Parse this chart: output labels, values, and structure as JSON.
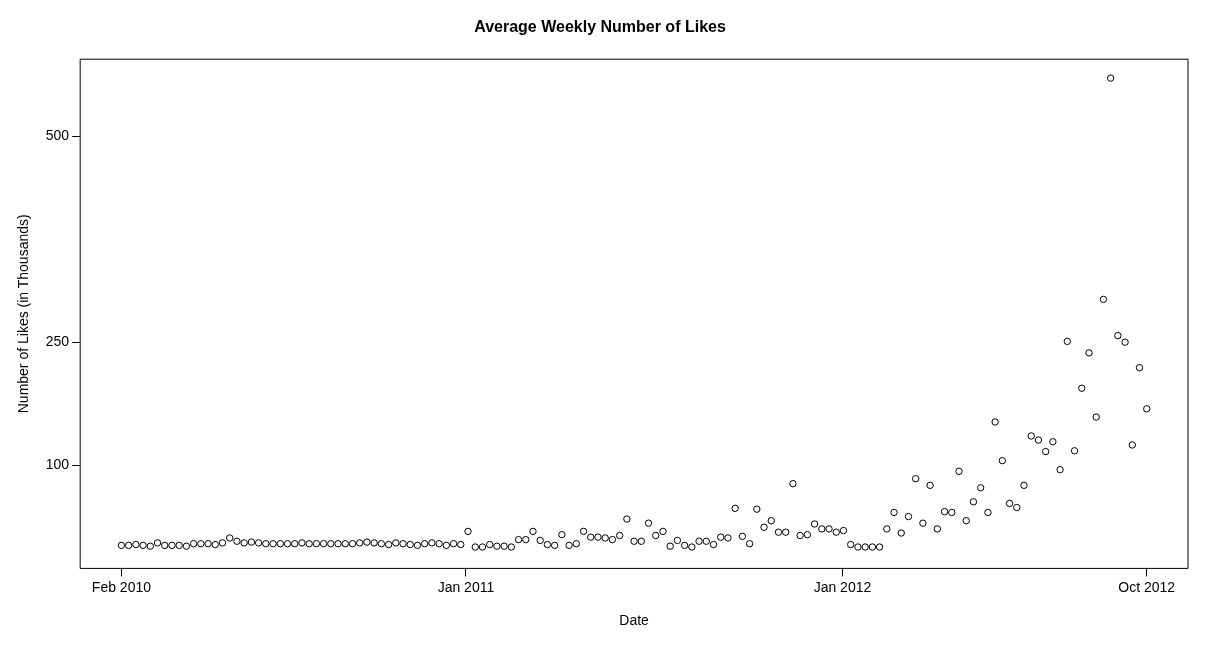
{
  "chart_data": {
    "type": "scatter",
    "title": "Average Weekly Number of Likes",
    "xlabel": "Date",
    "ylabel": "Number of Likes (in Thousands)",
    "marker": "circle",
    "grid": false,
    "xlim": [
      "2009-12-23",
      "2012-12-01"
    ],
    "ylim": [
      -25,
      594
    ],
    "xticks": [
      {
        "value": "2010-02-01",
        "label": "Feb 2010"
      },
      {
        "value": "2011-01-01",
        "label": "Jan 2011"
      },
      {
        "value": "2012-01-01",
        "label": "Jan 2012"
      },
      {
        "value": "2012-10-22",
        "label": "Oct 2012"
      }
    ],
    "yticks": [
      100,
      250,
      500
    ],
    "x": [
      "2010-02-01",
      "2010-02-08",
      "2010-02-15",
      "2010-02-22",
      "2010-03-01",
      "2010-03-08",
      "2010-03-15",
      "2010-03-22",
      "2010-03-29",
      "2010-04-05",
      "2010-04-12",
      "2010-04-19",
      "2010-04-26",
      "2010-05-03",
      "2010-05-10",
      "2010-05-17",
      "2010-05-24",
      "2010-05-31",
      "2010-06-07",
      "2010-06-14",
      "2010-06-21",
      "2010-06-28",
      "2010-07-05",
      "2010-07-12",
      "2010-07-19",
      "2010-07-26",
      "2010-08-02",
      "2010-08-09",
      "2010-08-16",
      "2010-08-23",
      "2010-08-30",
      "2010-09-06",
      "2010-09-13",
      "2010-09-20",
      "2010-09-27",
      "2010-10-04",
      "2010-10-11",
      "2010-10-18",
      "2010-10-25",
      "2010-11-01",
      "2010-11-08",
      "2010-11-15",
      "2010-11-22",
      "2010-11-29",
      "2010-12-06",
      "2010-12-13",
      "2010-12-20",
      "2010-12-27",
      "2011-01-03",
      "2011-01-10",
      "2011-01-17",
      "2011-01-24",
      "2011-01-31",
      "2011-02-07",
      "2011-02-14",
      "2011-02-21",
      "2011-02-28",
      "2011-03-07",
      "2011-03-14",
      "2011-03-21",
      "2011-03-28",
      "2011-04-04",
      "2011-04-11",
      "2011-04-18",
      "2011-04-25",
      "2011-05-02",
      "2011-05-09",
      "2011-05-16",
      "2011-05-23",
      "2011-05-30",
      "2011-06-06",
      "2011-06-13",
      "2011-06-20",
      "2011-06-27",
      "2011-07-04",
      "2011-07-11",
      "2011-07-18",
      "2011-07-25",
      "2011-08-01",
      "2011-08-08",
      "2011-08-15",
      "2011-08-22",
      "2011-08-29",
      "2011-09-05",
      "2011-09-12",
      "2011-09-19",
      "2011-09-26",
      "2011-10-03",
      "2011-10-10",
      "2011-10-17",
      "2011-10-24",
      "2011-10-31",
      "2011-11-07",
      "2011-11-14",
      "2011-11-21",
      "2011-11-28",
      "2011-12-05",
      "2011-12-12",
      "2011-12-19",
      "2011-12-26",
      "2012-01-02",
      "2012-01-09",
      "2012-01-16",
      "2012-01-23",
      "2012-01-30",
      "2012-02-06",
      "2012-02-13",
      "2012-02-20",
      "2012-02-27",
      "2012-03-05",
      "2012-03-12",
      "2012-03-19",
      "2012-03-26",
      "2012-04-02",
      "2012-04-09",
      "2012-04-16",
      "2012-04-23",
      "2012-04-30",
      "2012-05-07",
      "2012-05-14",
      "2012-05-21",
      "2012-05-28",
      "2012-06-04",
      "2012-06-11",
      "2012-06-18",
      "2012-06-25",
      "2012-07-02",
      "2012-07-09",
      "2012-07-16",
      "2012-07-23",
      "2012-07-30",
      "2012-08-06",
      "2012-08-13",
      "2012-08-20",
      "2012-08-27",
      "2012-09-03",
      "2012-09-10",
      "2012-09-17",
      "2012-09-24",
      "2012-10-01",
      "2012-10-08",
      "2012-10-15",
      "2012-10-22"
    ],
    "series": [
      {
        "color": "#000000",
        "values": [
          3,
          3,
          4,
          3,
          2,
          6,
          3,
          3,
          3,
          2,
          5,
          5,
          5,
          4,
          6,
          12,
          8,
          6,
          7,
          6,
          5,
          5,
          5,
          5,
          5,
          6,
          5,
          5,
          5,
          5,
          5,
          5,
          5,
          6,
          7,
          6,
          5,
          4,
          6,
          5,
          4,
          3,
          5,
          6,
          5,
          3,
          5,
          4,
          20,
          1,
          1,
          4,
          2,
          2,
          1,
          10,
          10,
          20,
          9,
          4,
          3,
          16,
          3,
          5,
          20,
          13,
          13,
          12,
          10,
          15,
          35,
          8,
          8,
          30,
          15,
          20,
          2,
          9,
          3,
          1,
          8,
          8,
          4,
          13,
          12,
          48,
          14,
          5,
          47,
          25,
          33,
          19,
          19,
          78,
          15,
          16,
          29,
          23,
          23,
          19,
          21,
          4,
          1,
          1,
          1,
          1,
          23,
          43,
          18,
          38,
          84,
          30,
          76,
          23,
          44,
          43,
          93,
          33,
          56,
          73,
          43,
          153,
          106,
          54,
          49,
          76,
          136,
          131,
          117,
          129,
          95,
          251,
          118,
          194,
          237,
          159,
          302,
          571,
          258,
          250,
          125,
          219,
          169
        ]
      }
    ]
  }
}
